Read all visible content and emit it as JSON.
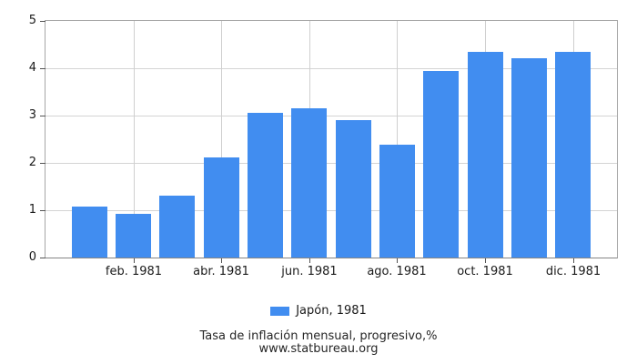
{
  "chart_data": {
    "type": "bar",
    "title": "Tasa de inflación mensual, progresivo,%",
    "source": "www.statbureau.org",
    "legend": {
      "label": "Japón, 1981",
      "position": "bottom"
    },
    "ylim": [
      0,
      5
    ],
    "y_ticks": [
      0,
      1,
      2,
      3,
      4,
      5
    ],
    "x_tick_labels": [
      "feb. 1981",
      "abr. 1981",
      "jun. 1981",
      "ago. 1981",
      "oct. 1981",
      "dic. 1981"
    ],
    "grid": true,
    "series": [
      {
        "name": "Japón, 1981",
        "values": [
          1.07,
          0.93,
          1.31,
          2.12,
          3.05,
          3.15,
          2.91,
          2.38,
          3.95,
          4.34,
          4.21,
          4.34
        ]
      }
    ],
    "colors": {
      "bar": "#418DF0",
      "gridline": "#d4d4d4",
      "plot_border": "#a6a6a6",
      "axis_line": "#848484",
      "tick": "#545454",
      "text": "#1a1a1a"
    }
  }
}
